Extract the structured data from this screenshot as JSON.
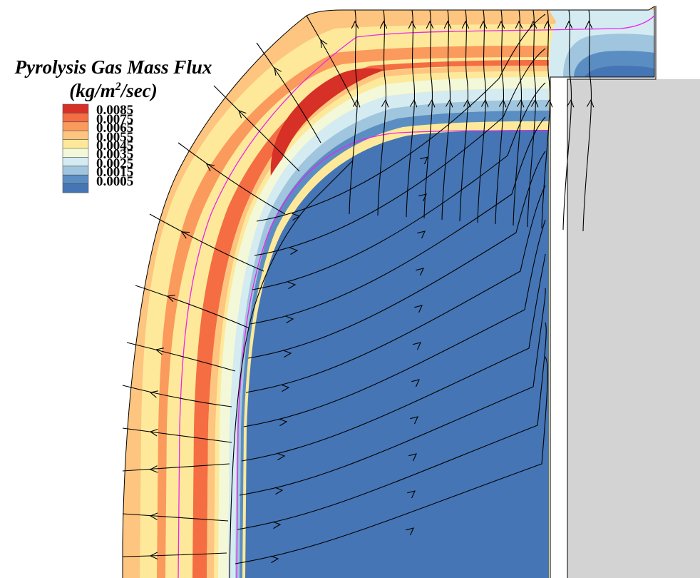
{
  "chart_data": {
    "type": "contour",
    "title": "Pyrolysis Gas Mass Flux",
    "title_units": "(kg/m²/sec)",
    "legend": {
      "placement": "top-left",
      "levels": [
        0.0085,
        0.0075,
        0.0065,
        0.0055,
        0.0045,
        0.0035,
        0.0025,
        0.0015,
        0.0005
      ],
      "labels": [
        "0.0085",
        "0.0075",
        "0.0065",
        "0.0055",
        "0.0045",
        "0.0035",
        "0.0025",
        "0.0015",
        "0.0005"
      ],
      "colors": [
        "#d73027",
        "#f46d43",
        "#fb9a5d",
        "#fdc57f",
        "#fee99a",
        "#f3f8d8",
        "#d4ebf2",
        "#9fc6de",
        "#5a8ec3",
        "#4575b4"
      ]
    },
    "overlays": [
      "streamlines",
      "ablation-front-contours"
    ],
    "contour_line_color": "#ee22ee",
    "grid": false
  }
}
